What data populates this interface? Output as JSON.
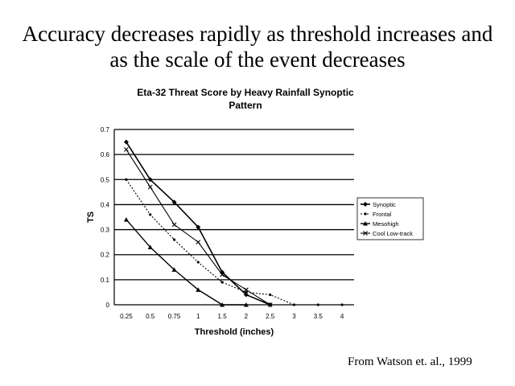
{
  "slide": {
    "title_line1": "Accuracy decreases rapidly as threshold increases and",
    "title_line2": "as the scale of the event decreases",
    "footer": "From Watson et. al., 1999"
  },
  "chart_data": {
    "type": "line",
    "title_line1": "Eta-32 Threat Score by Heavy Rainfall Synoptic",
    "title_line2": "Pattern",
    "xlabel": "Threshold (inches)",
    "ylabel": "TS",
    "categories": [
      "0.25",
      "0.5",
      "0.75",
      "1",
      "1.5",
      "2",
      "2.5",
      "3",
      "3.5",
      "4"
    ],
    "ylim": [
      0,
      0.7
    ],
    "yticks": [
      "0",
      "0.1",
      "0.2",
      "0.3",
      "0.4",
      "0.5",
      "0.6",
      "0.7"
    ],
    "grid": true,
    "legend_position": "right",
    "series": [
      {
        "name": "Synoptic",
        "marker": "diamond",
        "values": [
          0.65,
          0.5,
          0.41,
          0.31,
          0.13,
          0.04,
          0.0,
          null,
          null,
          null
        ]
      },
      {
        "name": "Frontal",
        "marker": "dot",
        "values": [
          0.5,
          0.36,
          0.26,
          0.17,
          0.09,
          0.05,
          0.04,
          0.0,
          0.0,
          0.0
        ]
      },
      {
        "name": "Mesohigh",
        "marker": "triangle",
        "values": [
          0.34,
          0.23,
          0.14,
          0.06,
          0.0,
          0.0,
          null,
          null,
          null,
          null
        ]
      },
      {
        "name": "Cool Low-track",
        "marker": "x",
        "values": [
          0.62,
          0.47,
          0.32,
          0.25,
          0.12,
          0.06,
          0.0,
          null,
          null,
          null
        ]
      }
    ]
  }
}
